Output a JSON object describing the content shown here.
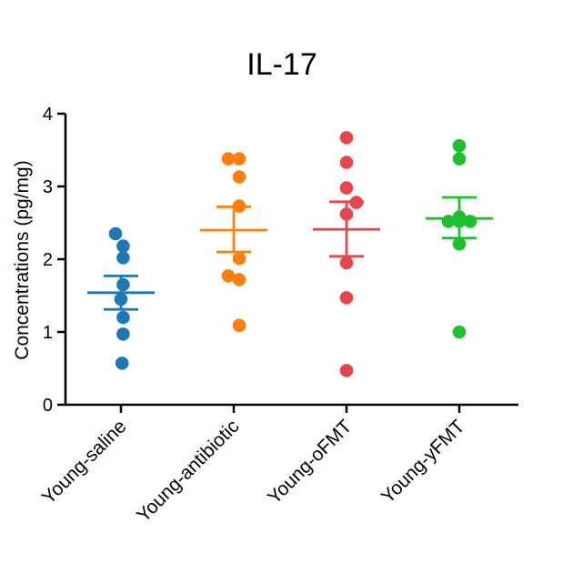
{
  "chart_data": {
    "type": "scatter",
    "title": "IL-17",
    "xlabel": "",
    "ylabel": "Concentrations (pg/mg)",
    "ylim": [
      0,
      4
    ],
    "yticks": [
      0,
      1,
      2,
      3,
      4
    ],
    "grid": false,
    "categories": [
      "Young-saline",
      "Young-antibiotic",
      "Young-oFMT",
      "Young-yFMT"
    ],
    "series": [
      {
        "name": "Young-saline",
        "color": "#1f77b4",
        "mean": 1.54,
        "sem_low": 1.31,
        "sem_high": 1.77,
        "points": [
          {
            "offset": -0.5,
            "value": 2.35
          },
          {
            "offset": 0.2,
            "value": 2.18
          },
          {
            "offset": 0.2,
            "value": 2.02
          },
          {
            "offset": 0.2,
            "value": 1.65
          },
          {
            "offset": 0.0,
            "value": 1.45
          },
          {
            "offset": 0.2,
            "value": 1.2
          },
          {
            "offset": 0.2,
            "value": 0.97
          },
          {
            "offset": 0.1,
            "value": 0.57
          }
        ]
      },
      {
        "name": "Young-antibiotic",
        "color": "#ff7f0e",
        "mean": 2.4,
        "sem_low": 2.1,
        "sem_high": 2.72,
        "points": [
          {
            "offset": -0.5,
            "value": 3.38
          },
          {
            "offset": 0.5,
            "value": 3.38
          },
          {
            "offset": 0.5,
            "value": 3.13
          },
          {
            "offset": 0.5,
            "value": 2.73
          },
          {
            "offset": 0.5,
            "value": 2.01
          },
          {
            "offset": -0.5,
            "value": 1.77
          },
          {
            "offset": 0.5,
            "value": 1.72
          },
          {
            "offset": 0.5,
            "value": 1.09
          }
        ]
      },
      {
        "name": "Young-oFMT",
        "color": "#e8464e",
        "mean": 2.41,
        "sem_low": 2.04,
        "sem_high": 2.79,
        "points": [
          {
            "offset": 0.0,
            "value": 3.67
          },
          {
            "offset": 0.0,
            "value": 3.33
          },
          {
            "offset": 0.0,
            "value": 2.98
          },
          {
            "offset": 0.9,
            "value": 2.78
          },
          {
            "offset": 0.0,
            "value": 2.62
          },
          {
            "offset": 0.0,
            "value": 1.95
          },
          {
            "offset": 0.0,
            "value": 1.47
          },
          {
            "offset": 0.0,
            "value": 0.47
          }
        ]
      },
      {
        "name": "Young-yFMT",
        "color": "#1fbf2e",
        "mean": 2.56,
        "sem_low": 2.29,
        "sem_high": 2.85,
        "points": [
          {
            "offset": 0.0,
            "value": 3.56
          },
          {
            "offset": 0.0,
            "value": 3.38
          },
          {
            "offset": 0.0,
            "value": 2.58
          },
          {
            "offset": -1.0,
            "value": 2.52
          },
          {
            "offset": 0.0,
            "value": 2.52
          },
          {
            "offset": 1.0,
            "value": 2.52
          },
          {
            "offset": 0.0,
            "value": 2.21
          },
          {
            "offset": 0.0,
            "value": 1.0
          }
        ]
      }
    ]
  }
}
